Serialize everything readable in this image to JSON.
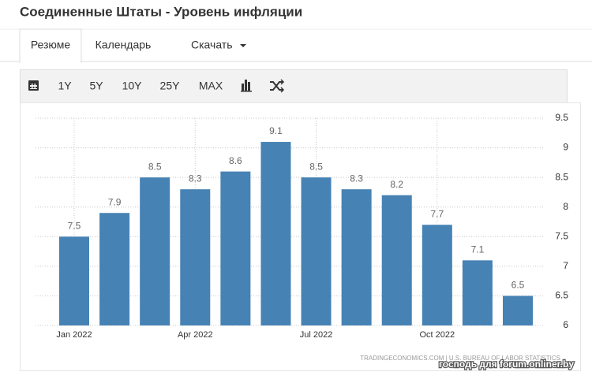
{
  "header": {
    "title": "Соединенные Штаты - Уровень инфляции"
  },
  "tabs": [
    "Резюме",
    "Календарь",
    "Скачать"
  ],
  "toolbar": [
    "1Y",
    "5Y",
    "10Y",
    "25Y",
    "MAX"
  ],
  "chart_data": {
    "type": "bar",
    "categories": [
      "Jan 2022",
      null,
      null,
      "Apr 2022",
      null,
      null,
      "Jul 2022",
      null,
      null,
      "Oct 2022",
      null,
      null
    ],
    "values": [
      7.5,
      7.9,
      8.5,
      8.3,
      8.6,
      9.1,
      8.5,
      8.3,
      8.2,
      7.7,
      7.1,
      6.5
    ],
    "color": "#4682b4",
    "ylim": [
      6,
      9.5
    ],
    "yticks": [
      6,
      6.5,
      7,
      7.5,
      8,
      8.5,
      9,
      9.5
    ],
    "grid": true,
    "source": "TRADINGECONOMICS.COM  |  U.S. BUREAU OF LABOR STATISTICS"
  },
  "watermark": "господь для forum.onliner.by"
}
